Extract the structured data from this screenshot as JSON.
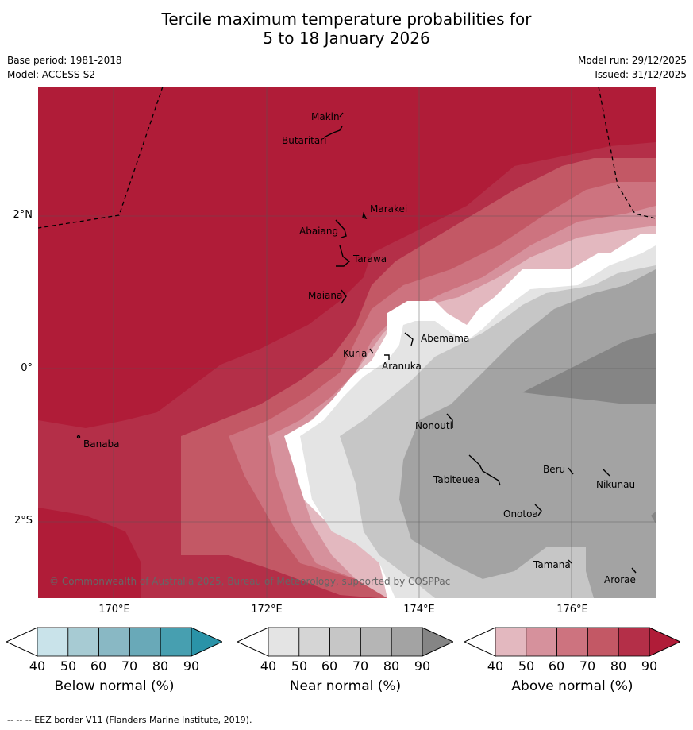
{
  "title_line1": "Tercile maximum temperature probabilities for",
  "title_line2": "5 to 18 January 2026",
  "base_period": "Base period: 1981-2018",
  "model": "Model: ACCESS-S2",
  "model_run": "Model run: 29/12/2025",
  "issued": "Issued: 31/12/2025",
  "copyright": "© Commonwealth of Australia 2025, Bureau of Meteorology, supported by COSPPac",
  "footer": "--  --  -- EEZ border V11 (Flanders Marine Institute, 2019).",
  "lat_labels": [
    "2°N",
    "0°",
    "2°S"
  ],
  "lon_labels": [
    "170°E",
    "172°E",
    "174°E",
    "176°E"
  ],
  "places": [
    {
      "name": "Makin"
    },
    {
      "name": "Butaritari"
    },
    {
      "name": "Marakei"
    },
    {
      "name": "Abaiang"
    },
    {
      "name": "Tarawa"
    },
    {
      "name": "Maiana"
    },
    {
      "name": "Abemama"
    },
    {
      "name": "Kuria"
    },
    {
      "name": "Aranuka"
    },
    {
      "name": "Banaba"
    },
    {
      "name": "Nonouti"
    },
    {
      "name": "Tabiteuea"
    },
    {
      "name": "Beru"
    },
    {
      "name": "Nikunau"
    },
    {
      "name": "Onotoa"
    },
    {
      "name": "Tamana"
    },
    {
      "name": "Arorae"
    }
  ],
  "colorbars": [
    {
      "label": "Below normal (%)",
      "ticks": [
        "40",
        "50",
        "60",
        "70",
        "80",
        "90"
      ],
      "colors": [
        "#c9e3ea",
        "#a7cbd3",
        "#89b8c4",
        "#69a9b8",
        "#479fb0",
        "#2a93a8"
      ]
    },
    {
      "label": "Near normal (%)",
      "ticks": [
        "40",
        "50",
        "60",
        "70",
        "80",
        "90"
      ],
      "colors": [
        "#e4e4e4",
        "#d5d5d5",
        "#c6c6c6",
        "#b5b5b5",
        "#a3a3a3",
        "#858585"
      ]
    },
    {
      "label": "Above normal (%)",
      "ticks": [
        "40",
        "50",
        "60",
        "70",
        "80",
        "90"
      ],
      "colors": [
        "#e3b8bf",
        "#d6919c",
        "#cd737f",
        "#c35865",
        "#b42f48",
        "#b01c38"
      ]
    }
  ]
}
